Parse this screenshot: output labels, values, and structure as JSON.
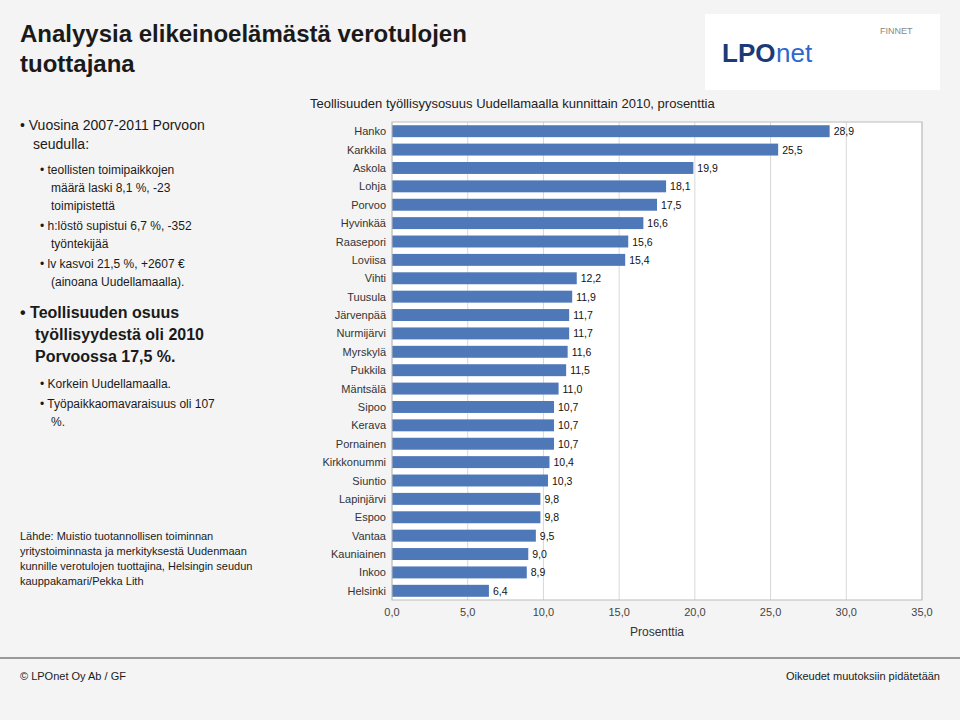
{
  "chart_data": {
    "type": "bar",
    "orientation": "horizontal",
    "title": "Teollisuuden työllisyysosuus Uudellamaalla kunnittain 2010, prosenttia",
    "xlabel": "Prosenttia",
    "categories": [
      "Hanko",
      "Karkkila",
      "Askola",
      "Lohja",
      "Porvoo",
      "Hyvinkää",
      "Raasepori",
      "Loviisa",
      "Vihti",
      "Tuusula",
      "Järvenpää",
      "Nurmijärvi",
      "Myrskylä",
      "Pukkila",
      "Mäntsälä",
      "Sipoo",
      "Kerava",
      "Pornainen",
      "Kirkkonummi",
      "Siuntio",
      "Lapinjärvi",
      "Espoo",
      "Vantaa",
      "Kauniainen",
      "Inkoo",
      "Helsinki"
    ],
    "values": [
      28.9,
      25.5,
      19.9,
      18.1,
      17.5,
      16.6,
      15.6,
      15.4,
      12.2,
      11.9,
      11.7,
      11.7,
      11.6,
      11.5,
      11.0,
      10.7,
      10.7,
      10.7,
      10.4,
      10.3,
      9.8,
      9.8,
      9.5,
      9.0,
      8.9,
      6.4
    ],
    "value_labels": [
      "28,9",
      "25,5",
      "19,9",
      "18,1",
      "17,5",
      "16,6",
      "15,6",
      "15,4",
      "12,2",
      "11,9",
      "11,7",
      "11,7",
      "11,6",
      "11,5",
      "11,0",
      "10,7",
      "10,7",
      "10,7",
      "10,4",
      "10,3",
      "9,8",
      "9,8",
      "9,5",
      "9,0",
      "8,9",
      "6,4"
    ],
    "data_labels": true,
    "color": "#4E78B8",
    "xlim": [
      0,
      35
    ],
    "xticks": [
      {
        "value": 0,
        "label": "0,0"
      },
      {
        "value": 5,
        "label": "5,0"
      },
      {
        "value": 10,
        "label": "10,0"
      },
      {
        "value": 15,
        "label": "15,0"
      },
      {
        "value": 20,
        "label": "20,0"
      },
      {
        "value": 25,
        "label": "25,0"
      },
      {
        "value": 30,
        "label": "30,0"
      },
      {
        "value": 35,
        "label": "35,0"
      }
    ],
    "grid": true,
    "annotations": [
      "Analyysia elikeinoelämästä verotulojen",
      "tuottajana",
      "LPO",
      "net",
      "FINNET",
      "• Vuosina 2007-2011 Porvoon",
      "seudulla:",
      "• teollisten toimipaikkojen",
      "määrä laski 8,1 %, -23",
      "toimipistettä",
      "• h:löstö supistui 6,7 %, -352",
      "työntekijää",
      "• lv kasvoi 21,5 %, +2607 €",
      "(ainoana Uudellamaalla).",
      "• Teollisuuden osuus",
      "työllisyydestä oli 2010",
      "Porvoossa 17,5 %.",
      "• Korkein Uudellamaalla.",
      "• Työpaikkaomavaraisuus oli 107",
      "%.",
      "Lähde: Muistio tuotannollisen toiminnan\nyritystoiminnasta ja merkityksestä Uudenmaan\nkunnille verotulojen tuottajina, Helsingin seudun\nkauppakamari/Pekka Lith",
      "© LPOnet Oy Ab / GF",
      "Oikeudet muutoksiin pidätetään"
    ]
  }
}
